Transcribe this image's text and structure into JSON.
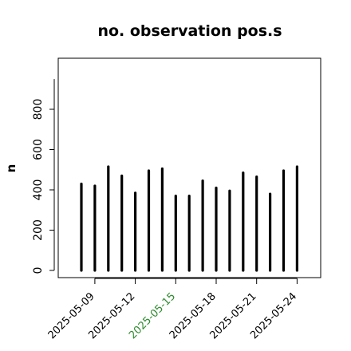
{
  "chart_data": {
    "type": "bar",
    "title": "no. observation pos.s",
    "xlabel": "",
    "ylabel": "n",
    "ylim": [
      0,
      950
    ],
    "grid": false,
    "yticks": [
      0,
      200,
      400,
      600,
      800
    ],
    "ytick_labels": [
      "0",
      "200",
      "400",
      "600",
      "800"
    ],
    "x": [
      "2025-05-08",
      "2025-05-09",
      "2025-05-10",
      "2025-05-11",
      "2025-05-12",
      "2025-05-13",
      "2025-05-14",
      "2025-05-15",
      "2025-05-16",
      "2025-05-17",
      "2025-05-18",
      "2025-05-19",
      "2025-05-20",
      "2025-05-21",
      "2025-05-22",
      "2025-05-23",
      "2025-05-24"
    ],
    "values": [
      430,
      420,
      515,
      470,
      385,
      495,
      505,
      370,
      370,
      445,
      410,
      395,
      485,
      465,
      380,
      495,
      515
    ],
    "xtick_labels": [
      {
        "label": "2025-05-09",
        "color": "#000000"
      },
      {
        "label": "2025-05-12",
        "color": "#000000"
      },
      {
        "label": "2025-05-15",
        "color": "#2e8b2e"
      },
      {
        "label": "2025-05-18",
        "color": "#000000"
      },
      {
        "label": "2025-05-21",
        "color": "#000000"
      },
      {
        "label": "2025-05-24",
        "color": "#000000"
      }
    ],
    "bar_color": "#000000"
  }
}
